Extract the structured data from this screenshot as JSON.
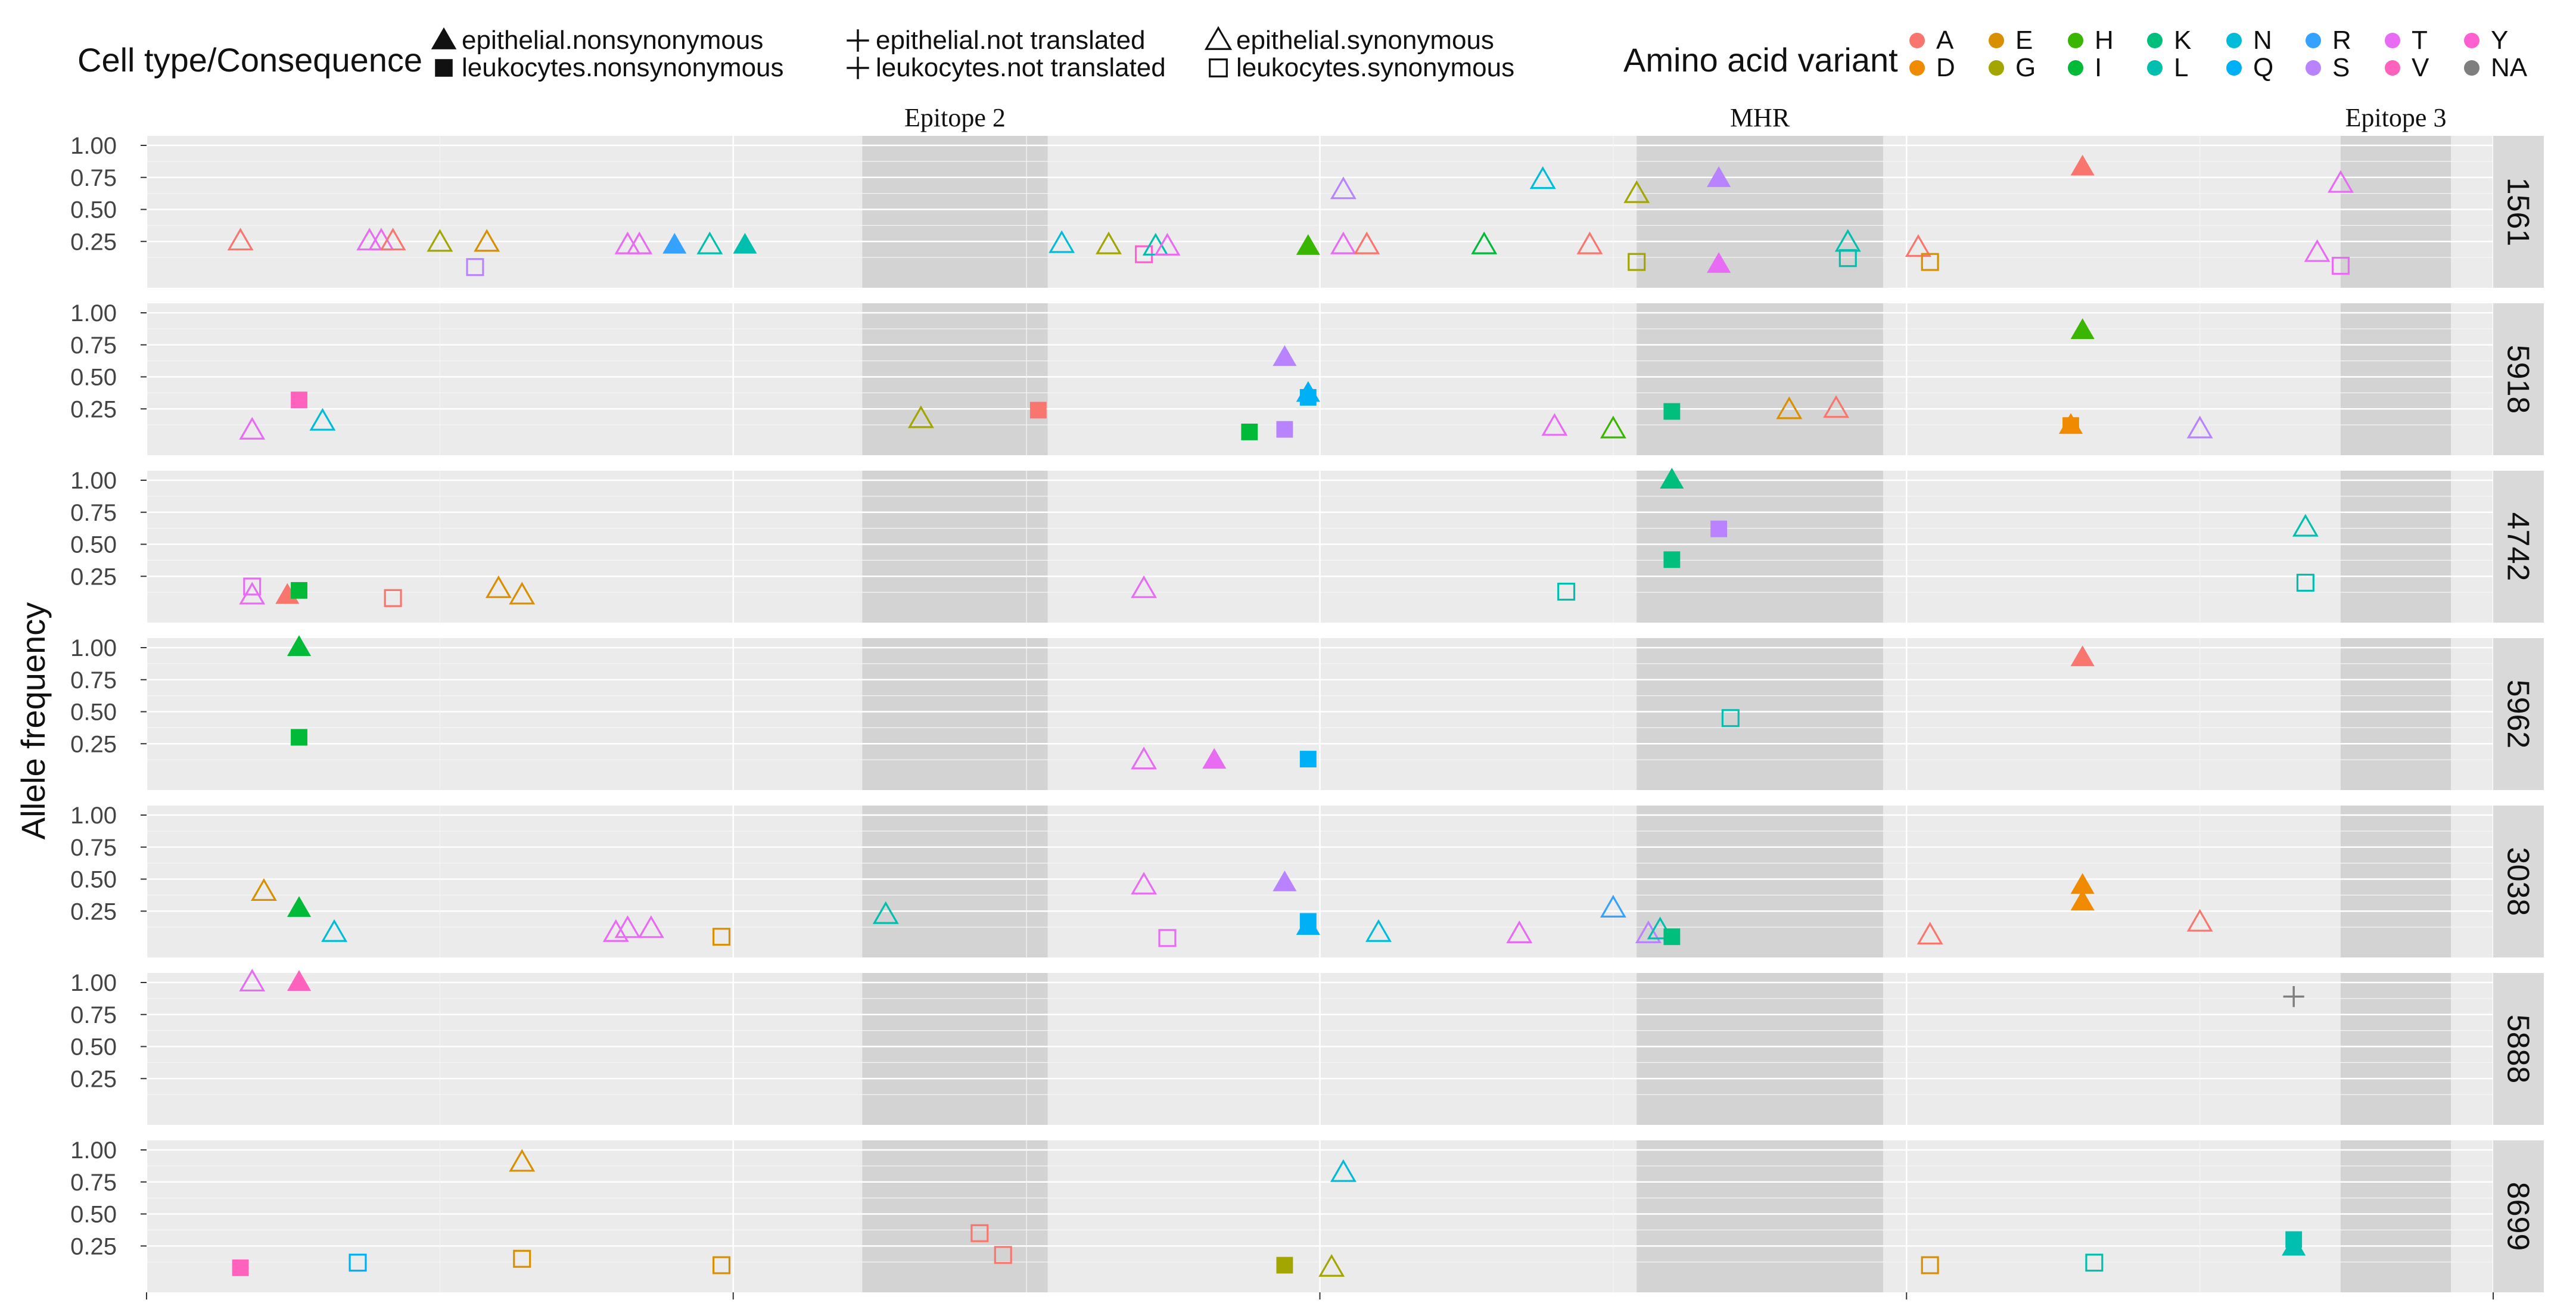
{
  "chart_data": {
    "type": "scatter",
    "ylabel": "Allele frequency",
    "y_ticks": [
      "1.00",
      "0.75",
      "0.50",
      "0.25"
    ],
    "ylim": [
      0,
      1
    ],
    "xlim": [
      0,
      100
    ],
    "x_gridlines": [
      0,
      12.5,
      25,
      37.5,
      50,
      62.5,
      75,
      87.5,
      100
    ],
    "grid": true,
    "legend_position": "top",
    "legends": [
      {
        "title": "Cell type/Consequence",
        "entries": [
          {
            "label": "epithelial.nonsynonymous",
            "shape": "filled-triangle"
          },
          {
            "label": "leukocytes.nonsynonymous",
            "shape": "filled-square"
          },
          {
            "label": "epithelial.not translated",
            "shape": "plus"
          },
          {
            "label": "leukocytes.not translated",
            "shape": "plus"
          },
          {
            "label": "epithelial.synonymous",
            "shape": "open-triangle"
          },
          {
            "label": "leukocytes.synonymous",
            "shape": "open-square"
          }
        ]
      },
      {
        "title": "Amino acid variant",
        "entries": [
          {
            "label": "A",
            "color": "#F8766D"
          },
          {
            "label": "D",
            "color": "#F08A00"
          },
          {
            "label": "E",
            "color": "#D89000"
          },
          {
            "label": "G",
            "color": "#A3A500"
          },
          {
            "label": "H",
            "color": "#39B600"
          },
          {
            "label": "I",
            "color": "#00BA38"
          },
          {
            "label": "K",
            "color": "#00BF7D"
          },
          {
            "label": "L",
            "color": "#00BFAE"
          },
          {
            "label": "N",
            "color": "#00BCD8"
          },
          {
            "label": "Q",
            "color": "#00B0F6"
          },
          {
            "label": "R",
            "color": "#35A2FF"
          },
          {
            "label": "S",
            "color": "#B983FF"
          },
          {
            "label": "T",
            "color": "#E76BF3"
          },
          {
            "label": "V",
            "color": "#FF62BC"
          },
          {
            "label": "Y",
            "color": "#FD61D1"
          },
          {
            "label": "NA",
            "color": "#7F7F7F"
          }
        ]
      }
    ],
    "regions": [
      {
        "label": "Epitope 2",
        "x0": 30.5,
        "x1": 38.4
      },
      {
        "label": "MHR",
        "x0": 63.5,
        "x1": 74.0
      },
      {
        "label": "Epitope 3",
        "x0": 93.5,
        "x1": 98.2
      }
    ],
    "panels": [
      {
        "name": "1561",
        "points": [
          {
            "x": 4,
            "y": 0.25,
            "shape": "open-triangle",
            "aa": "A"
          },
          {
            "x": 9.5,
            "y": 0.25,
            "shape": "open-triangle",
            "aa": "T"
          },
          {
            "x": 10,
            "y": 0.25,
            "shape": "open-triangle",
            "aa": "T"
          },
          {
            "x": 10.5,
            "y": 0.25,
            "shape": "open-triangle",
            "aa": "A"
          },
          {
            "x": 12.5,
            "y": 0.24,
            "shape": "open-triangle",
            "aa": "G"
          },
          {
            "x": 14.5,
            "y": 0.24,
            "shape": "open-triangle",
            "aa": "E"
          },
          {
            "x": 14,
            "y": 0.05,
            "shape": "open-square",
            "aa": "S"
          },
          {
            "x": 20.5,
            "y": 0.22,
            "shape": "open-triangle",
            "aa": "T"
          },
          {
            "x": 21,
            "y": 0.22,
            "shape": "open-triangle",
            "aa": "T"
          },
          {
            "x": 22.5,
            "y": 0.22,
            "shape": "filled-triangle",
            "aa": "R"
          },
          {
            "x": 24,
            "y": 0.22,
            "shape": "open-triangle",
            "aa": "L"
          },
          {
            "x": 25.5,
            "y": 0.22,
            "shape": "filled-triangle",
            "aa": "L"
          },
          {
            "x": 39,
            "y": 0.23,
            "shape": "open-triangle",
            "aa": "N"
          },
          {
            "x": 41,
            "y": 0.22,
            "shape": "open-triangle",
            "aa": "G"
          },
          {
            "x": 42.5,
            "y": 0.15,
            "shape": "open-square",
            "aa": "Y"
          },
          {
            "x": 43,
            "y": 0.21,
            "shape": "open-triangle",
            "aa": "L"
          },
          {
            "x": 43.5,
            "y": 0.21,
            "shape": "open-triangle",
            "aa": "T"
          },
          {
            "x": 49.5,
            "y": 0.21,
            "shape": "filled-triangle",
            "aa": "H"
          },
          {
            "x": 51,
            "y": 0.65,
            "shape": "open-triangle",
            "aa": "S"
          },
          {
            "x": 51,
            "y": 0.22,
            "shape": "open-triangle",
            "aa": "T"
          },
          {
            "x": 52,
            "y": 0.22,
            "shape": "open-triangle",
            "aa": "A"
          },
          {
            "x": 57,
            "y": 0.22,
            "shape": "open-triangle",
            "aa": "I"
          },
          {
            "x": 59.5,
            "y": 0.73,
            "shape": "open-triangle",
            "aa": "N"
          },
          {
            "x": 61.5,
            "y": 0.22,
            "shape": "open-triangle",
            "aa": "A"
          },
          {
            "x": 63.5,
            "y": 0.62,
            "shape": "open-triangle",
            "aa": "G"
          },
          {
            "x": 63.5,
            "y": 0.09,
            "shape": "open-square",
            "aa": "G"
          },
          {
            "x": 67,
            "y": 0.74,
            "shape": "filled-triangle",
            "aa": "S"
          },
          {
            "x": 67,
            "y": 0.07,
            "shape": "filled-triangle",
            "aa": "T"
          },
          {
            "x": 72.5,
            "y": 0.24,
            "shape": "open-triangle",
            "aa": "L"
          },
          {
            "x": 72.5,
            "y": 0.12,
            "shape": "open-square",
            "aa": "L"
          },
          {
            "x": 75.5,
            "y": 0.2,
            "shape": "open-triangle",
            "aa": "A"
          },
          {
            "x": 76,
            "y": 0.09,
            "shape": "open-square",
            "aa": "E"
          },
          {
            "x": 82.5,
            "y": 0.83,
            "shape": "filled-triangle",
            "aa": "A"
          },
          {
            "x": 92.5,
            "y": 0.16,
            "shape": "open-triangle",
            "aa": "T"
          },
          {
            "x": 93.5,
            "y": 0.7,
            "shape": "open-triangle",
            "aa": "T"
          },
          {
            "x": 93.5,
            "y": 0.06,
            "shape": "open-square",
            "aa": "T"
          }
        ]
      },
      {
        "name": "5918",
        "points": [
          {
            "x": 4.5,
            "y": 0.08,
            "shape": "open-triangle",
            "aa": "T"
          },
          {
            "x": 6.5,
            "y": 0.32,
            "shape": "filled-square",
            "aa": "V"
          },
          {
            "x": 7.5,
            "y": 0.15,
            "shape": "open-triangle",
            "aa": "N"
          },
          {
            "x": 33,
            "y": 0.17,
            "shape": "open-triangle",
            "aa": "G"
          },
          {
            "x": 38,
            "y": 0.24,
            "shape": "filled-square",
            "aa": "A"
          },
          {
            "x": 47,
            "y": 0.07,
            "shape": "filled-square",
            "aa": "I"
          },
          {
            "x": 48.5,
            "y": 0.65,
            "shape": "filled-triangle",
            "aa": "S"
          },
          {
            "x": 48.5,
            "y": 0.09,
            "shape": "filled-square",
            "aa": "S"
          },
          {
            "x": 49.5,
            "y": 0.37,
            "shape": "filled-triangle",
            "aa": "Q"
          },
          {
            "x": 49.5,
            "y": 0.34,
            "shape": "filled-square",
            "aa": "Q"
          },
          {
            "x": 60,
            "y": 0.11,
            "shape": "open-triangle",
            "aa": "T"
          },
          {
            "x": 62.5,
            "y": 0.09,
            "shape": "open-triangle",
            "aa": "H"
          },
          {
            "x": 65,
            "y": 0.23,
            "shape": "filled-square",
            "aa": "K"
          },
          {
            "x": 70,
            "y": 0.24,
            "shape": "open-triangle",
            "aa": "E"
          },
          {
            "x": 72,
            "y": 0.25,
            "shape": "open-triangle",
            "aa": "A"
          },
          {
            "x": 82,
            "y": 0.12,
            "shape": "filled-triangle",
            "aa": "D"
          },
          {
            "x": 82,
            "y": 0.12,
            "shape": "filled-square",
            "aa": "D"
          },
          {
            "x": 82.5,
            "y": 0.86,
            "shape": "filled-triangle",
            "aa": "H"
          },
          {
            "x": 87.5,
            "y": 0.09,
            "shape": "open-triangle",
            "aa": "S"
          }
        ]
      },
      {
        "name": "4742",
        "points": [
          {
            "x": 4.5,
            "y": 0.17,
            "shape": "open-square",
            "aa": "T"
          },
          {
            "x": 4.5,
            "y": 0.1,
            "shape": "open-triangle",
            "aa": "T"
          },
          {
            "x": 6,
            "y": 0.1,
            "shape": "filled-triangle",
            "aa": "A"
          },
          {
            "x": 6.5,
            "y": 0.14,
            "shape": "filled-square",
            "aa": "I"
          },
          {
            "x": 10.5,
            "y": 0.08,
            "shape": "open-square",
            "aa": "A"
          },
          {
            "x": 15,
            "y": 0.15,
            "shape": "open-triangle",
            "aa": "E"
          },
          {
            "x": 16,
            "y": 0.1,
            "shape": "open-triangle",
            "aa": "E"
          },
          {
            "x": 42.5,
            "y": 0.15,
            "shape": "open-triangle",
            "aa": "T"
          },
          {
            "x": 60.5,
            "y": 0.13,
            "shape": "open-square",
            "aa": "L"
          },
          {
            "x": 65,
            "y": 1.0,
            "shape": "filled-triangle",
            "aa": "K"
          },
          {
            "x": 65,
            "y": 0.38,
            "shape": "filled-square",
            "aa": "K"
          },
          {
            "x": 67,
            "y": 0.62,
            "shape": "filled-square",
            "aa": "S"
          },
          {
            "x": 92,
            "y": 0.63,
            "shape": "open-triangle",
            "aa": "L"
          },
          {
            "x": 92,
            "y": 0.2,
            "shape": "open-square",
            "aa": "L"
          }
        ]
      },
      {
        "name": "5962",
        "points": [
          {
            "x": 6.5,
            "y": 1.0,
            "shape": "filled-triangle",
            "aa": "I"
          },
          {
            "x": 6.5,
            "y": 0.3,
            "shape": "filled-square",
            "aa": "I"
          },
          {
            "x": 42.5,
            "y": 0.12,
            "shape": "open-triangle",
            "aa": "T"
          },
          {
            "x": 45.5,
            "y": 0.12,
            "shape": "filled-triangle",
            "aa": "T"
          },
          {
            "x": 49.5,
            "y": 0.13,
            "shape": "filled-square",
            "aa": "Q"
          },
          {
            "x": 67.5,
            "y": 0.45,
            "shape": "open-square",
            "aa": "L"
          },
          {
            "x": 82.5,
            "y": 0.92,
            "shape": "filled-triangle",
            "aa": "A"
          }
        ]
      },
      {
        "name": "3038",
        "points": [
          {
            "x": 5,
            "y": 0.4,
            "shape": "open-triangle",
            "aa": "E"
          },
          {
            "x": 6.5,
            "y": 0.27,
            "shape": "filled-triangle",
            "aa": "I"
          },
          {
            "x": 8,
            "y": 0.08,
            "shape": "open-triangle",
            "aa": "N"
          },
          {
            "x": 20,
            "y": 0.08,
            "shape": "open-triangle",
            "aa": "T"
          },
          {
            "x": 20.5,
            "y": 0.11,
            "shape": "open-triangle",
            "aa": "T"
          },
          {
            "x": 21.5,
            "y": 0.11,
            "shape": "open-triangle",
            "aa": "T"
          },
          {
            "x": 24.5,
            "y": 0.05,
            "shape": "open-square",
            "aa": "E"
          },
          {
            "x": 31.5,
            "y": 0.22,
            "shape": "open-triangle",
            "aa": "L"
          },
          {
            "x": 42.5,
            "y": 0.45,
            "shape": "open-triangle",
            "aa": "T"
          },
          {
            "x": 43.5,
            "y": 0.04,
            "shape": "open-square",
            "aa": "T"
          },
          {
            "x": 48.5,
            "y": 0.47,
            "shape": "filled-triangle",
            "aa": "S"
          },
          {
            "x": 49.5,
            "y": 0.17,
            "shape": "filled-square",
            "aa": "Q"
          },
          {
            "x": 49.5,
            "y": 0.13,
            "shape": "filled-triangle",
            "aa": "Q"
          },
          {
            "x": 52.5,
            "y": 0.08,
            "shape": "open-triangle",
            "aa": "N"
          },
          {
            "x": 58.5,
            "y": 0.07,
            "shape": "open-triangle",
            "aa": "T"
          },
          {
            "x": 62.5,
            "y": 0.27,
            "shape": "open-triangle",
            "aa": "R"
          },
          {
            "x": 64,
            "y": 0.07,
            "shape": "open-triangle",
            "aa": "S"
          },
          {
            "x": 64.5,
            "y": 0.1,
            "shape": "open-triangle",
            "aa": "L"
          },
          {
            "x": 65,
            "y": 0.05,
            "shape": "filled-square",
            "aa": "K"
          },
          {
            "x": 76,
            "y": 0.06,
            "shape": "open-triangle",
            "aa": "A"
          },
          {
            "x": 82.5,
            "y": 0.45,
            "shape": "filled-triangle",
            "aa": "D"
          },
          {
            "x": 82.5,
            "y": 0.32,
            "shape": "filled-triangle",
            "aa": "D"
          },
          {
            "x": 87.5,
            "y": 0.16,
            "shape": "open-triangle",
            "aa": "A"
          }
        ]
      },
      {
        "name": "5888",
        "points": [
          {
            "x": 4.5,
            "y": 1.0,
            "shape": "open-triangle",
            "aa": "T"
          },
          {
            "x": 6.5,
            "y": 1.0,
            "shape": "filled-triangle",
            "aa": "V"
          },
          {
            "x": 91.5,
            "y": 0.89,
            "shape": "plus",
            "aa": "NA"
          }
        ]
      },
      {
        "name": "8699",
        "points": [
          {
            "x": 4,
            "y": 0.08,
            "shape": "filled-square",
            "aa": "V"
          },
          {
            "x": 9,
            "y": 0.12,
            "shape": "open-square",
            "aa": "Q"
          },
          {
            "x": 16,
            "y": 0.9,
            "shape": "open-triangle",
            "aa": "E"
          },
          {
            "x": 16,
            "y": 0.15,
            "shape": "open-square",
            "aa": "E"
          },
          {
            "x": 24.5,
            "y": 0.1,
            "shape": "open-square",
            "aa": "E"
          },
          {
            "x": 35.5,
            "y": 0.35,
            "shape": "open-square",
            "aa": "A"
          },
          {
            "x": 36.5,
            "y": 0.18,
            "shape": "open-square",
            "aa": "A"
          },
          {
            "x": 48.5,
            "y": 0.1,
            "shape": "filled-square",
            "aa": "G"
          },
          {
            "x": 50.5,
            "y": 0.08,
            "shape": "open-triangle",
            "aa": "G"
          },
          {
            "x": 51,
            "y": 0.82,
            "shape": "open-triangle",
            "aa": "N"
          },
          {
            "x": 76,
            "y": 0.1,
            "shape": "open-square",
            "aa": "E"
          },
          {
            "x": 83,
            "y": 0.12,
            "shape": "open-square",
            "aa": "L"
          },
          {
            "x": 91.5,
            "y": 0.3,
            "shape": "filled-square",
            "aa": "L"
          },
          {
            "x": 91.5,
            "y": 0.24,
            "shape": "filled-triangle",
            "aa": "L"
          }
        ]
      }
    ]
  }
}
